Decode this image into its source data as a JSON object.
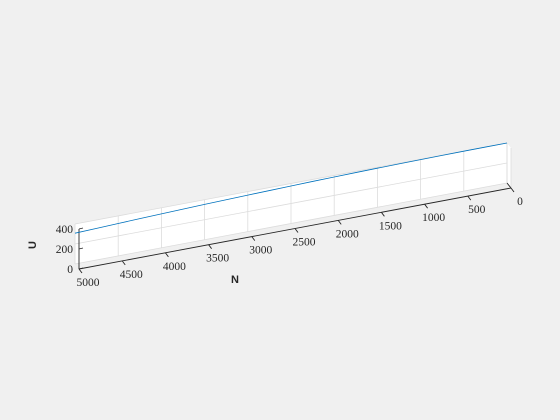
{
  "chart_data": {
    "type": "line",
    "projection": "3d",
    "title": "",
    "xlabel": "N",
    "ylabel": "",
    "zlabel": "U",
    "xlim": [
      0,
      5000
    ],
    "ylim": [
      0,
      1
    ],
    "zlim": [
      0,
      400
    ],
    "x_ticks": [
      "0",
      "500",
      "1000",
      "1500",
      "2000",
      "2500",
      "3000",
      "3500",
      "4000",
      "4500",
      "5000"
    ],
    "z_ticks": [
      "0",
      "200",
      "400"
    ],
    "grid": true,
    "box": false,
    "series": [
      {
        "color": "#0072BD",
        "x": [
          0,
          250,
          500,
          750,
          1000,
          1250,
          1500,
          1750,
          2000,
          2250,
          2500,
          2750,
          3000,
          3250,
          3500,
          3750,
          4000,
          4250,
          4500,
          4750,
          5000
        ],
        "y": [
          0,
          0,
          0,
          0,
          0,
          0,
          0,
          0,
          0,
          0,
          0,
          0,
          0,
          0,
          0,
          0,
          0,
          0,
          0,
          0,
          0
        ],
        "z": [
          400,
          400,
          399,
          398,
          396,
          394,
          391,
          388,
          384,
          380,
          375,
          370,
          365,
          359,
          353,
          346,
          339,
          332,
          324,
          316,
          308
        ]
      }
    ]
  }
}
